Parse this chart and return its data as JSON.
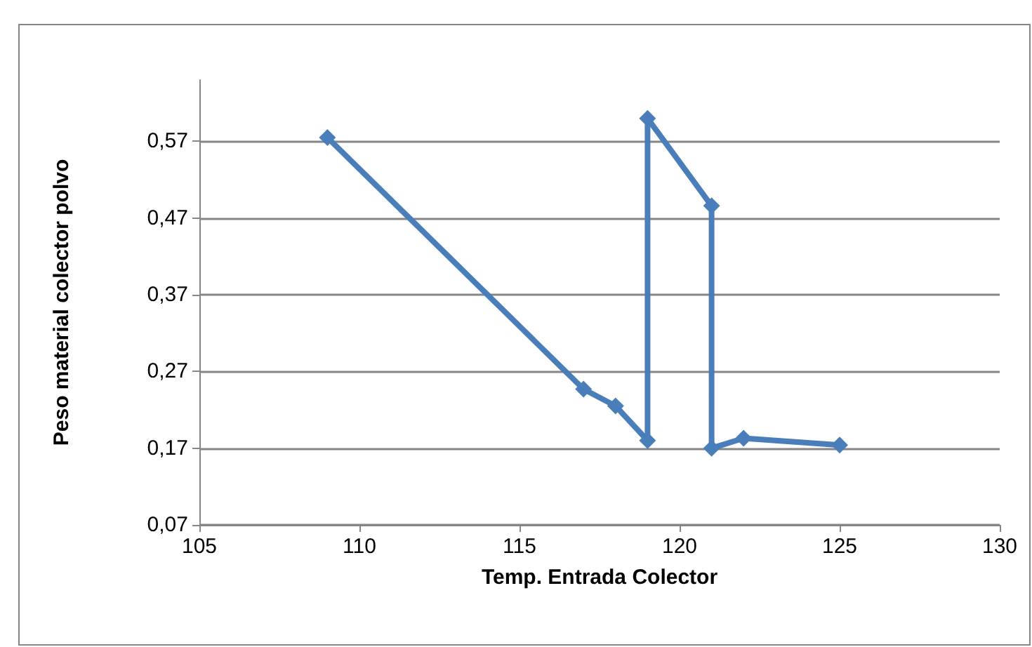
{
  "chart_data": {
    "type": "line",
    "xlabel": "Temp. Entrada Colector",
    "ylabel": "Peso material colector polvo",
    "series": [
      {
        "color": "#4a7ebb",
        "x": [
          109,
          117,
          118,
          119,
          119,
          121,
          121,
          122,
          125
        ],
        "values": [
          0.575,
          0.247,
          0.225,
          0.18,
          0.6,
          0.486,
          0.17,
          0.183,
          0.174
        ]
      }
    ],
    "xlim": [
      105,
      130
    ],
    "xticks": [
      105,
      110,
      115,
      120,
      125,
      130
    ],
    "ylim": [
      0.07,
      0.65
    ],
    "yticks": [
      {
        "value": 0.07,
        "label": "0,07"
      },
      {
        "value": 0.17,
        "label": "0,17"
      },
      {
        "value": 0.27,
        "label": "0,27"
      },
      {
        "value": 0.37,
        "label": "0,37"
      },
      {
        "value": 0.47,
        "label": "0,47"
      },
      {
        "value": 0.57,
        "label": "0,57"
      }
    ],
    "grid": "y",
    "marker": "diamond",
    "line_style": "solid"
  }
}
